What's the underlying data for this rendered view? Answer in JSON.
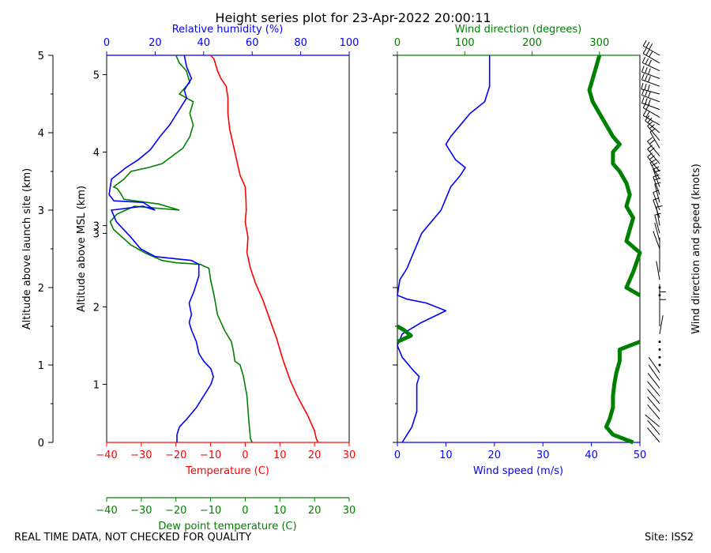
{
  "title": "Height series plot for 23-Apr-2022 20:00:11",
  "footer": {
    "quality_note": "REAL TIME DATA, NOT CHECKED FOR QUALITY",
    "site": "Site: ISS2"
  },
  "colors": {
    "red": "#ff0000",
    "green": "#008000",
    "blue": "#0000ff",
    "black": "#000000"
  },
  "chart_data": [
    {
      "type": "line",
      "name": "thermo_panel",
      "ylabel_left": "Altitude above launch site (km)",
      "ylabel_inner": "Altitude above MSL (km)",
      "ylim_launch": [
        0,
        5
      ],
      "ylim_msl": [
        0.25,
        5.25
      ],
      "msl_tick_labels": [
        "1",
        "2",
        "3",
        "3",
        "4",
        "5"
      ],
      "msl_tick_values": [
        1,
        2,
        2.95,
        3.05,
        4,
        5
      ],
      "launch_ticks": [
        0,
        1,
        2,
        3,
        4,
        5
      ],
      "x_bottom": {
        "label": "Temperature (C)",
        "range": [
          -40,
          30
        ],
        "ticks": [
          -40,
          -30,
          -20,
          -10,
          0,
          10,
          20,
          30
        ]
      },
      "x_bottom2": {
        "label": "Dew point temperature (C)",
        "range": [
          -40,
          30
        ],
        "ticks": [
          -40,
          -30,
          -20,
          -10,
          0,
          10,
          20,
          30
        ]
      },
      "x_top": {
        "label": "Relative humidity (%)",
        "range": [
          0,
          100
        ],
        "ticks": [
          0,
          20,
          40,
          60,
          80,
          100
        ]
      },
      "series": [
        {
          "name": "Temperature",
          "axis": "x_bottom",
          "color": "red",
          "points": [
            [
              21,
              0
            ],
            [
              20.5,
              0.05
            ],
            [
              20,
              0.15
            ],
            [
              18,
              0.35
            ],
            [
              15,
              0.6
            ],
            [
              13,
              0.8
            ],
            [
              11,
              1.05
            ],
            [
              9,
              1.35
            ],
            [
              7,
              1.6
            ],
            [
              5,
              1.85
            ],
            [
              3,
              2.05
            ],
            [
              1.5,
              2.25
            ],
            [
              0.5,
              2.45
            ],
            [
              0.8,
              2.65
            ],
            [
              0,
              2.85
            ],
            [
              0.3,
              3.0
            ],
            [
              0.2,
              3.15
            ],
            [
              0,
              3.3
            ],
            [
              -1.5,
              3.45
            ],
            [
              -2.5,
              3.65
            ],
            [
              -3.5,
              3.85
            ],
            [
              -4.5,
              4.05
            ],
            [
              -5,
              4.25
            ],
            [
              -5,
              4.45
            ],
            [
              -5.5,
              4.6
            ],
            [
              -7,
              4.7
            ],
            [
              -8,
              4.8
            ],
            [
              -9,
              4.95
            ],
            [
              -10,
              5.0
            ]
          ]
        },
        {
          "name": "Dew point",
          "axis": "x_bottom2",
          "color": "green",
          "points": [
            [
              2,
              0
            ],
            [
              1.5,
              0.05
            ],
            [
              1,
              0.3
            ],
            [
              0.5,
              0.6
            ],
            [
              -0.5,
              0.85
            ],
            [
              -1.5,
              1.0
            ],
            [
              -3,
              1.05
            ],
            [
              -3.5,
              1.2
            ],
            [
              -4,
              1.3
            ],
            [
              -6,
              1.45
            ],
            [
              -7,
              1.55
            ],
            [
              -8,
              1.65
            ],
            [
              -9,
              1.9
            ],
            [
              -10,
              2.1
            ],
            [
              -10.5,
              2.25
            ],
            [
              -13,
              2.3
            ],
            [
              -20,
              2.32
            ],
            [
              -24,
              2.35
            ],
            [
              -29,
              2.45
            ],
            [
              -33,
              2.55
            ],
            [
              -38,
              2.75
            ],
            [
              -39,
              2.85
            ],
            [
              -37,
              2.95
            ],
            [
              -32,
              3.05
            ],
            [
              -19,
              3.0
            ],
            [
              -25,
              3.08
            ],
            [
              -35,
              3.14
            ],
            [
              -36,
              3.22
            ],
            [
              -37,
              3.28
            ],
            [
              -38,
              3.3
            ],
            [
              -35,
              3.4
            ],
            [
              -33,
              3.5
            ],
            [
              -28,
              3.55
            ],
            [
              -24,
              3.6
            ],
            [
              -21,
              3.7
            ],
            [
              -18,
              3.8
            ],
            [
              -16,
              3.95
            ],
            [
              -15,
              4.1
            ],
            [
              -16,
              4.25
            ],
            [
              -15,
              4.4
            ],
            [
              -17,
              4.45
            ],
            [
              -19,
              4.5
            ],
            [
              -16,
              4.65
            ],
            [
              -17,
              4.8
            ],
            [
              -19,
              4.9
            ],
            [
              -20,
              5.0
            ]
          ]
        },
        {
          "name": "Relative humidity",
          "axis": "x_top",
          "color": "blue",
          "points": [
            [
              29,
              0
            ],
            [
              29,
              0.1
            ],
            [
              30,
              0.2
            ],
            [
              33,
              0.3
            ],
            [
              37,
              0.45
            ],
            [
              40,
              0.6
            ],
            [
              43,
              0.75
            ],
            [
              44,
              0.85
            ],
            [
              43,
              0.95
            ],
            [
              40,
              1.05
            ],
            [
              38,
              1.15
            ],
            [
              37,
              1.3
            ],
            [
              35,
              1.45
            ],
            [
              34,
              1.55
            ],
            [
              35,
              1.65
            ],
            [
              34,
              1.8
            ],
            [
              36,
              1.95
            ],
            [
              37,
              2.05
            ],
            [
              38,
              2.15
            ],
            [
              38,
              2.3
            ],
            [
              35,
              2.35
            ],
            [
              20,
              2.4
            ],
            [
              14,
              2.5
            ],
            [
              10,
              2.65
            ],
            [
              4,
              2.85
            ],
            [
              2,
              3.0
            ],
            [
              15,
              3.05
            ],
            [
              20,
              3.0
            ],
            [
              15,
              3.1
            ],
            [
              3,
              3.12
            ],
            [
              1,
              3.2
            ],
            [
              2,
              3.4
            ],
            [
              8,
              3.55
            ],
            [
              13,
              3.65
            ],
            [
              18,
              3.78
            ],
            [
              22,
              3.95
            ],
            [
              26,
              4.1
            ],
            [
              29,
              4.25
            ],
            [
              31,
              4.35
            ],
            [
              33,
              4.45
            ],
            [
              32,
              4.55
            ],
            [
              35,
              4.7
            ],
            [
              33,
              4.85
            ],
            [
              32,
              5.0
            ]
          ]
        }
      ]
    },
    {
      "type": "line",
      "name": "wind_panel",
      "x_bottom": {
        "label": "Wind speed (m/s)",
        "range": [
          0,
          50
        ],
        "ticks": [
          0,
          10,
          20,
          30,
          40,
          50
        ]
      },
      "x_top": {
        "label": "Wind direction (degrees)",
        "range": [
          0,
          360
        ],
        "ticks": [
          0,
          100,
          200,
          300
        ]
      },
      "right_label": "Wind direction and speed (knots)",
      "series": [
        {
          "name": "Wind speed",
          "axis": "x_bottom",
          "color": "blue",
          "points": [
            [
              1,
              0
            ],
            [
              2,
              0.1
            ],
            [
              3,
              0.2
            ],
            [
              4,
              0.4
            ],
            [
              4,
              0.6
            ],
            [
              4,
              0.75
            ],
            [
              4.5,
              0.85
            ],
            [
              3,
              0.95
            ],
            [
              1,
              1.1
            ],
            [
              0,
              1.25
            ],
            [
              1,
              1.4
            ],
            [
              5,
              1.55
            ],
            [
              10,
              1.7
            ],
            [
              6,
              1.8
            ],
            [
              2,
              1.85
            ],
            [
              0,
              1.9
            ],
            [
              0.5,
              2.1
            ],
            [
              2,
              2.25
            ],
            [
              3,
              2.4
            ],
            [
              4,
              2.55
            ],
            [
              5,
              2.7
            ],
            [
              7,
              2.85
            ],
            [
              9,
              3.0
            ],
            [
              10,
              3.15
            ],
            [
              11,
              3.3
            ],
            [
              13,
              3.45
            ],
            [
              14,
              3.55
            ],
            [
              12,
              3.65
            ],
            [
              11,
              3.75
            ],
            [
              10,
              3.85
            ],
            [
              11,
              3.95
            ],
            [
              13,
              4.1
            ],
            [
              15,
              4.25
            ],
            [
              18,
              4.4
            ],
            [
              19,
              4.6
            ],
            [
              19,
              4.8
            ],
            [
              19,
              5.0
            ]
          ]
        },
        {
          "name": "Wind direction",
          "axis": "x_top",
          "color": "green",
          "points": [
            [
              350,
              0
            ],
            [
              320,
              0.1
            ],
            [
              310,
              0.2
            ],
            [
              315,
              0.3
            ],
            [
              320,
              0.45
            ],
            [
              320,
              0.6
            ],
            [
              322,
              0.75
            ],
            [
              325,
              0.9
            ],
            [
              330,
              1.05
            ],
            [
              330,
              1.2
            ],
            [
              360,
              1.3
            ],
            [
              0,
              1.3
            ],
            [
              20,
              1.38
            ],
            [
              10,
              1.45
            ],
            [
              0,
              1.5
            ],
            [
              360,
              1.9
            ],
            [
              340,
              2.0
            ],
            [
              345,
              2.1
            ],
            [
              350,
              2.2
            ],
            [
              360,
              2.45
            ],
            [
              340,
              2.6
            ],
            [
              345,
              2.75
            ],
            [
              350,
              2.9
            ],
            [
              340,
              3.05
            ],
            [
              345,
              3.2
            ],
            [
              340,
              3.35
            ],
            [
              330,
              3.5
            ],
            [
              320,
              3.6
            ],
            [
              320,
              3.75
            ],
            [
              330,
              3.85
            ],
            [
              320,
              3.95
            ],
            [
              310,
              4.1
            ],
            [
              300,
              4.25
            ],
            [
              290,
              4.4
            ],
            [
              285,
              4.55
            ],
            [
              290,
              4.7
            ],
            [
              295,
              4.85
            ],
            [
              300,
              5.0
            ]
          ]
        }
      ]
    }
  ]
}
